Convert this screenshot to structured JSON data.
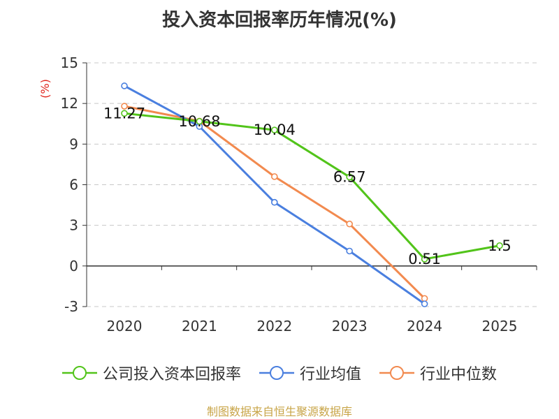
{
  "chart_data": {
    "type": "line",
    "title": "投入资本回报率历年情况(%)",
    "ylabel": "(%)",
    "categories": [
      "2020",
      "2021",
      "2022",
      "2023",
      "2024",
      "2025"
    ],
    "ylim": [
      -3,
      15
    ],
    "yticks": [
      15,
      12,
      9,
      6,
      3,
      0,
      -3
    ],
    "grid": true,
    "legend_position": "bottom",
    "series": [
      {
        "name": "公司投入资本回报率",
        "color": "#52c41a",
        "values": [
          11.27,
          10.68,
          10.04,
          6.57,
          0.51,
          1.5
        ],
        "labels": [
          "11.27",
          "10.68",
          "10.04",
          "6.57",
          "0.51",
          "1.5"
        ]
      },
      {
        "name": "行业均值",
        "color": "#4a7fdf",
        "values": [
          13.3,
          10.3,
          4.7,
          1.1,
          -2.8,
          null
        ]
      },
      {
        "name": "行业中位数",
        "color": "#f28a4f",
        "values": [
          11.8,
          10.7,
          6.6,
          3.1,
          -2.4,
          null
        ]
      }
    ]
  },
  "source": "制图数据来自恒生聚源数据库"
}
